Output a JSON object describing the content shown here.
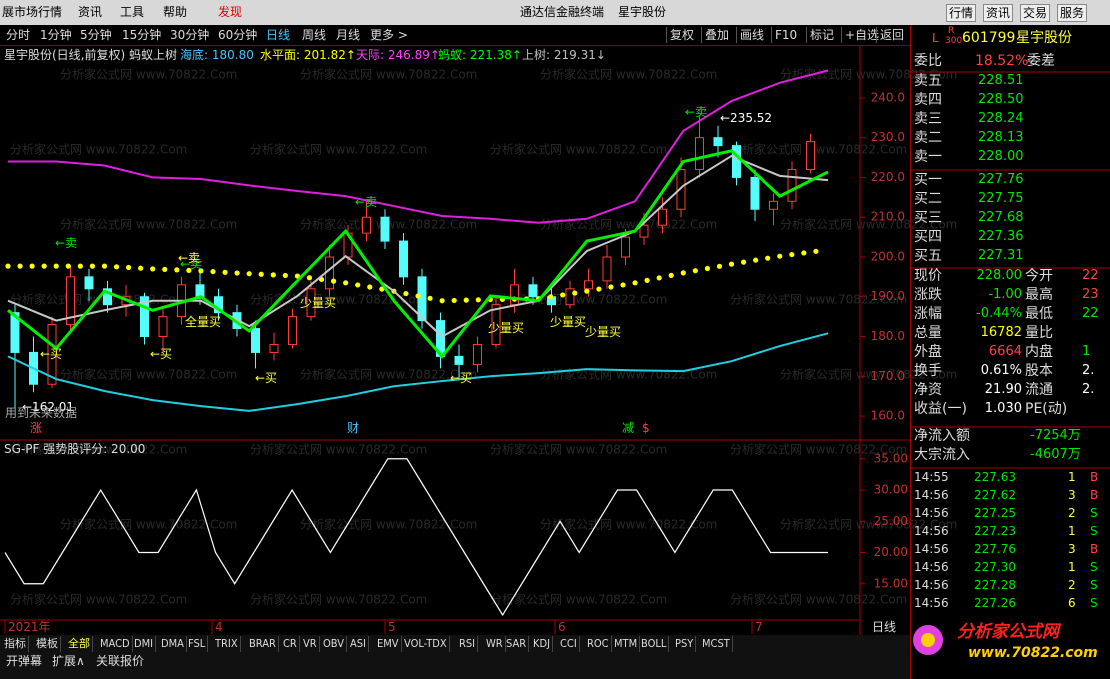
{
  "menu": {
    "items": [
      "展市场行情",
      "资讯",
      "工具",
      "帮助",
      "发现"
    ],
    "center_title": "通达信金融终端",
    "center_stock": "星宇股份",
    "right_buttons": [
      "行情",
      "资讯",
      "交易",
      "服务"
    ]
  },
  "period_tabs": {
    "items": [
      "分时",
      "1分钟",
      "5分钟",
      "15分钟",
      "30分钟",
      "60分钟",
      "日线",
      "周线",
      "月线",
      "更多 >"
    ],
    "active": 6
  },
  "toolbar": [
    "复权",
    "叠加",
    "画线",
    "F10",
    "标记",
    "+自选",
    "返回"
  ],
  "main_chart": {
    "header": "星宇股份(日线,前复权) 蚂蚁上树",
    "legend": [
      {
        "text": "海底: 180.80",
        "color": "#3fc8ff"
      },
      {
        "text": "水平面: 201.82↑",
        "color": "#ffff00"
      },
      {
        "text": "天际: 246.89↑",
        "color": "#ff40ff"
      },
      {
        "text": "蚂蚁: 221.38↑",
        "color": "#00ff00"
      },
      {
        "text": "上树: 219.31↓",
        "color": "#c0c0c0"
      }
    ],
    "ylim": [
      157.5,
      253.3
    ],
    "yticks": [
      {
        "value": 240,
        "label": "240.0"
      },
      {
        "value": 230,
        "label": "230.0"
      },
      {
        "value": 220,
        "label": "220.0"
      },
      {
        "value": 210,
        "label": "210.0"
      },
      {
        "value": 200,
        "label": "200.0"
      },
      {
        "value": 190,
        "label": "190.0"
      },
      {
        "value": 180,
        "label": "180.0"
      },
      {
        "value": 170,
        "label": "170.0"
      },
      {
        "value": 160,
        "label": "160.0"
      }
    ],
    "candles": [
      [
        186,
        188,
        162.01,
        176
      ],
      [
        176,
        180,
        166,
        168
      ],
      [
        168,
        185,
        167,
        183
      ],
      [
        183,
        198,
        181,
        195
      ],
      [
        195,
        197,
        189,
        192
      ],
      [
        192,
        194,
        186,
        188
      ],
      [
        188,
        193,
        185,
        190
      ],
      [
        190,
        191,
        178,
        180
      ],
      [
        180,
        187,
        176,
        185
      ],
      [
        185,
        195,
        183,
        193
      ],
      [
        193,
        196,
        188,
        190
      ],
      [
        190,
        192,
        184,
        186
      ],
      [
        186,
        188,
        180,
        182
      ],
      [
        182,
        184,
        172,
        176
      ],
      [
        176,
        181,
        174,
        178
      ],
      [
        178,
        187,
        177,
        185
      ],
      [
        185,
        194,
        184,
        192
      ],
      [
        192,
        203,
        190,
        200
      ],
      [
        200,
        208,
        198,
        206
      ],
      [
        206,
        214,
        204,
        210
      ],
      [
        210,
        212,
        202,
        204
      ],
      [
        204,
        206,
        193,
        195
      ],
      [
        195,
        197,
        182,
        184
      ],
      [
        184,
        186,
        172,
        175
      ],
      [
        175,
        178,
        169,
        173
      ],
      [
        173,
        180,
        171,
        178
      ],
      [
        178,
        190,
        177,
        188
      ],
      [
        188,
        197,
        186,
        193
      ],
      [
        193,
        195,
        188,
        190
      ],
      [
        190,
        192,
        186,
        188
      ],
      [
        188,
        194,
        187,
        192
      ],
      [
        192,
        197,
        190,
        194
      ],
      [
        194,
        203,
        192,
        200
      ],
      [
        200,
        207,
        198,
        205
      ],
      [
        205,
        211,
        203,
        208
      ],
      [
        208,
        215,
        206,
        212
      ],
      [
        212,
        225,
        210,
        222
      ],
      [
        222,
        235.52,
        220,
        230
      ],
      [
        230,
        233,
        225,
        228
      ],
      [
        228,
        229,
        218,
        220
      ],
      [
        220,
        222,
        209,
        212
      ],
      [
        212,
        216,
        208,
        214
      ],
      [
        214,
        224,
        212,
        222
      ],
      [
        222,
        231,
        221,
        229
      ]
    ],
    "series": [
      {
        "name": "天际",
        "color": "#e020e0",
        "values": [
          224,
          224,
          223,
          220,
          219.6,
          218,
          216.6,
          215.3,
          212.8,
          210.3,
          209.6,
          208.6,
          209.6,
          214,
          231.7,
          239.2,
          243.8,
          246.89
        ]
      },
      {
        "name": "海底",
        "color": "#20d0e0",
        "values": [
          175,
          169.3,
          166.3,
          164,
          162.5,
          161.3,
          163,
          165,
          167.5,
          168.8,
          170,
          170.8,
          171.8,
          171.5,
          171.3,
          173.8,
          177.6,
          180.8
        ]
      },
      {
        "name": "水平面",
        "color": "#ffff00",
        "dotted": true,
        "values": [
          197.7,
          197.7,
          197.7,
          197,
          196.5,
          195.8,
          195.2,
          193.5,
          191.4,
          189,
          189.3,
          189.5,
          191.4,
          193.5,
          196,
          198.2,
          200.2,
          201.82
        ]
      },
      {
        "name": "上树",
        "color": "#c8c8c8",
        "values": [
          189,
          184,
          186.6,
          189,
          189,
          182.6,
          190.2,
          200.2,
          191.4,
          180,
          186.6,
          189,
          201.5,
          206.5,
          217.9,
          225.4,
          220.4,
          219.31
        ]
      },
      {
        "name": "蚂蚁",
        "color": "#00f000",
        "values": [
          186.6,
          177,
          191.4,
          186.6,
          190,
          181.4,
          194,
          206.5,
          189,
          175,
          190.2,
          189,
          204,
          206.5,
          224,
          226.7,
          215.3,
          221.38
        ]
      }
    ],
    "annotations": [
      "←卖",
      "←卖",
      "←卖",
      "←卖",
      "←卖",
      "←买",
      "←买",
      "←买",
      "←买",
      "少量买",
      "全量买",
      "少量买",
      "少量买",
      "少量买",
      "←235.52",
      "←162.01",
      "用到未来数据",
      "涨",
      "财",
      "减",
      "$"
    ]
  },
  "sub_chart": {
    "header": "SG-PF 强势股评分: 20.00",
    "ylim": [
      9.2,
      37.2
    ],
    "yticks": [
      {
        "value": 35,
        "label": "35.00"
      },
      {
        "value": 30,
        "label": "30.00"
      },
      {
        "value": 25,
        "label": "25.00"
      },
      {
        "value": 20,
        "label": "20.00"
      },
      {
        "value": 15,
        "label": "15.00"
      }
    ],
    "values": [
      20,
      15,
      15,
      20,
      25,
      30,
      25,
      20,
      20,
      25,
      30,
      20,
      15,
      20,
      25,
      30,
      25,
      20,
      25,
      30,
      35,
      35,
      30,
      25,
      20,
      15,
      10,
      15,
      20,
      25,
      20,
      25,
      30,
      30,
      25,
      20,
      25,
      30,
      30,
      25,
      20,
      20,
      20,
      20
    ]
  },
  "x_axis_labels": [
    "2021年",
    "4",
    "5",
    "6",
    "7"
  ],
  "indicator_tabs": [
    "指标",
    "模板",
    "全部",
    "MACD",
    "DMI",
    "DMA",
    "FSL",
    "TRIX",
    "BRAR",
    "CR",
    "VR",
    "OBV",
    "ASI",
    "EMV",
    "VOL-TDX",
    "RSI",
    "WR",
    "SAR",
    "KDJ",
    "CCI",
    "ROC",
    "MTM",
    "BOLL",
    "PSY",
    "MCST"
  ],
  "bottom_row": [
    "开弹幕",
    "扩展∧",
    "关联报价"
  ],
  "period_label": "日线",
  "watermark": "分析家公式网 www.70822.Com",
  "logo": {
    "name": "分析家公式网",
    "url": "www.70822.com"
  },
  "quote_panel": {
    "L": "L",
    "R": "R",
    "board": "300",
    "code": "601799",
    "name": "星宇股份",
    "ratio": {
      "label": "委比",
      "value": "18.52%",
      "label2": "委差"
    },
    "sell": [
      {
        "label": "卖五",
        "price": "228.51"
      },
      {
        "label": "卖四",
        "price": "228.50"
      },
      {
        "label": "卖三",
        "price": "228.24"
      },
      {
        "label": "卖二",
        "price": "228.13"
      },
      {
        "label": "卖一",
        "price": "228.00"
      }
    ],
    "buy": [
      {
        "label": "买一",
        "price": "227.76"
      },
      {
        "label": "买二",
        "price": "227.75"
      },
      {
        "label": "买三",
        "price": "227.68"
      },
      {
        "label": "买四",
        "price": "227.36"
      },
      {
        "label": "买五",
        "price": "227.31"
      }
    ],
    "stats": [
      {
        "label": "现价",
        "value": "228.00",
        "color": "#00e600",
        "label2": "今开",
        "value2": "22",
        "color2": "#ff4040"
      },
      {
        "label": "涨跌",
        "value": "-1.00",
        "color": "#00e600",
        "label2": "最高",
        "value2": "23",
        "color2": "#ff4040"
      },
      {
        "label": "涨幅",
        "value": "-0.44%",
        "color": "#00e600",
        "label2": "最低",
        "value2": "22",
        "color2": "#00e600"
      },
      {
        "label": "总量",
        "value": "16782",
        "color": "#ffff00",
        "label2": "量比",
        "value2": "",
        "color2": "#fff"
      },
      {
        "label": "外盘",
        "value": "6664",
        "color": "#ff4040",
        "label2": "内盘",
        "value2": "1",
        "color2": "#00e600"
      },
      {
        "label": "换手",
        "value": "0.61%",
        "color": "#fff",
        "label2": "股本",
        "value2": "2.",
        "color2": "#fff"
      },
      {
        "label": "净资",
        "value": "21.90",
        "color": "#fff",
        "label2": "流通",
        "value2": "2.",
        "color2": "#fff"
      },
      {
        "label": "收益(一)",
        "value": "1.030",
        "color": "#fff",
        "label2": "PE(动)",
        "value2": "",
        "color2": "#fff"
      }
    ],
    "flows": [
      {
        "label": "净流入额",
        "value": "-7254万"
      },
      {
        "label": "大宗流入",
        "value": "-4607万"
      }
    ],
    "ticks": [
      {
        "time": "14:55",
        "price": "227.63",
        "vol": "1",
        "side": "B"
      },
      {
        "time": "14:56",
        "price": "227.62",
        "vol": "3",
        "side": "B"
      },
      {
        "time": "14:56",
        "price": "227.25",
        "vol": "2",
        "side": "S"
      },
      {
        "time": "14:56",
        "price": "227.23",
        "vol": "1",
        "side": "S"
      },
      {
        "time": "14:56",
        "price": "227.76",
        "vol": "3",
        "side": "B"
      },
      {
        "time": "14:56",
        "price": "227.30",
        "vol": "1",
        "side": "S"
      },
      {
        "time": "14:56",
        "price": "227.28",
        "vol": "2",
        "side": "S"
      },
      {
        "time": "14:56",
        "price": "227.26",
        "vol": "6",
        "side": "S"
      }
    ]
  }
}
